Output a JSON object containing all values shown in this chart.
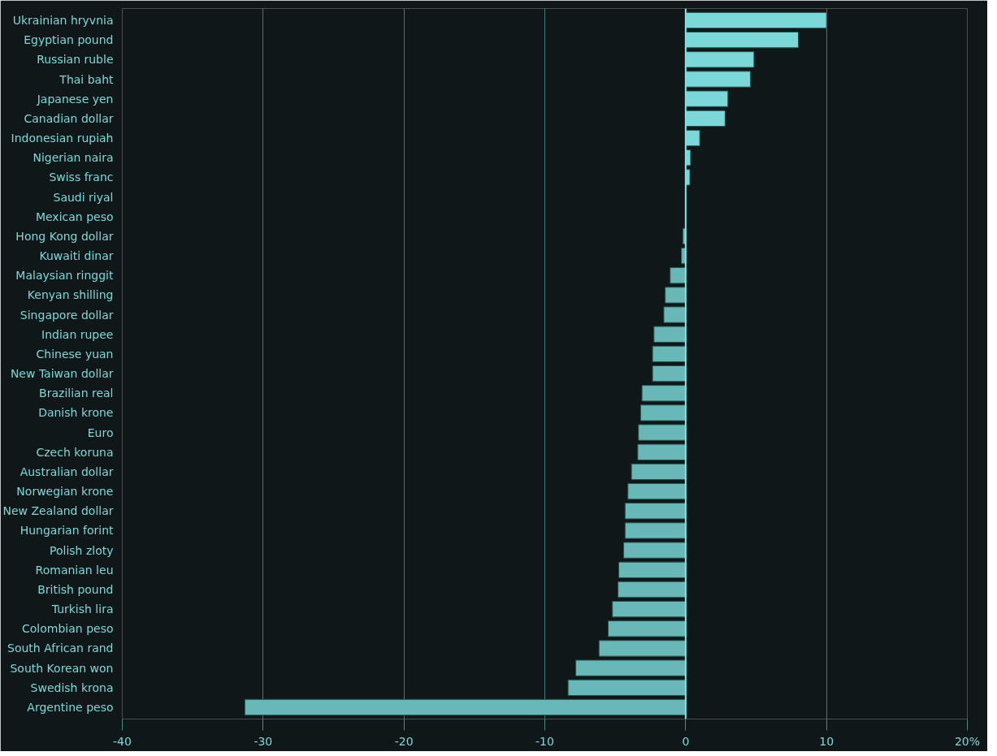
{
  "chart_data": {
    "type": "bar",
    "orientation": "horizontal",
    "categories": [
      "Ukrainian hryvnia",
      "Egyptian pound",
      "Russian ruble",
      "Thai baht",
      "Japanese yen",
      "Canadian dollar",
      "Indonesian rupiah",
      "Nigerian naira",
      "Swiss franc",
      "Saudi riyal",
      "Mexican peso",
      "Hong Kong dollar",
      "Kuwaiti dinar",
      "Malaysian ringgit",
      "Kenyan shilling",
      "Singapore dollar",
      "Indian rupee",
      "Chinese yuan",
      "New Taiwan dollar",
      "Brazilian real",
      "Danish krone",
      "Euro",
      "Czech koruna",
      "Australian dollar",
      "Norwegian krone",
      "New Zealand dollar",
      "Hungarian forint",
      "Polish zloty",
      "Romanian leu",
      "British pound",
      "Turkish lira",
      "Colombian peso",
      "South African rand",
      "South Korean won",
      "Swedish krona",
      "Argentine peso"
    ],
    "values": [
      10.0,
      8.0,
      4.85,
      4.6,
      3.0,
      2.8,
      1.0,
      0.35,
      0.3,
      null,
      null,
      -0.2,
      -0.3,
      -1.1,
      -1.45,
      -1.55,
      -2.25,
      -2.35,
      -2.35,
      -3.1,
      -3.2,
      -3.35,
      -3.4,
      -3.85,
      -4.1,
      -4.3,
      -4.3,
      -4.4,
      -4.75,
      -4.8,
      -5.2,
      -5.5,
      -6.15,
      -7.8,
      -8.35,
      -31.3
    ],
    "colors": [
      "#7ad8d8",
      "#7ad8d8",
      "#7ad8d8",
      "#7ad8d8",
      "#7ad8d8",
      "#7ad8d8",
      "#7ad8d8",
      "#7ad8d8",
      "#7ad8d8",
      "#7ad8d8",
      "#7ad8d8",
      "#68b8b8",
      "#68b8b8",
      "#68b8b8",
      "#68b8b8",
      "#68b8b8",
      "#68b8b8",
      "#68b8b8",
      "#68b8b8",
      "#68b8b8",
      "#68b8b8",
      "#68b8b8",
      "#68b8b8",
      "#68b8b8",
      "#68b8b8",
      "#68b8b8",
      "#68b8b8",
      "#68b8b8",
      "#68b8b8",
      "#68b8b8",
      "#68b8b8",
      "#68b8b8",
      "#68b8b8",
      "#68b8b8",
      "#68b8b8",
      "#68b8b8"
    ],
    "xlim": [
      -40,
      20
    ],
    "xticks": [
      -40,
      -30,
      -20,
      -10,
      0,
      10,
      {
        "value": 20,
        "label": "20%"
      }
    ],
    "grid": "x",
    "ref_lines": [
      {
        "axis": "x",
        "value": 0,
        "color": "#80e8e8"
      }
    ]
  }
}
